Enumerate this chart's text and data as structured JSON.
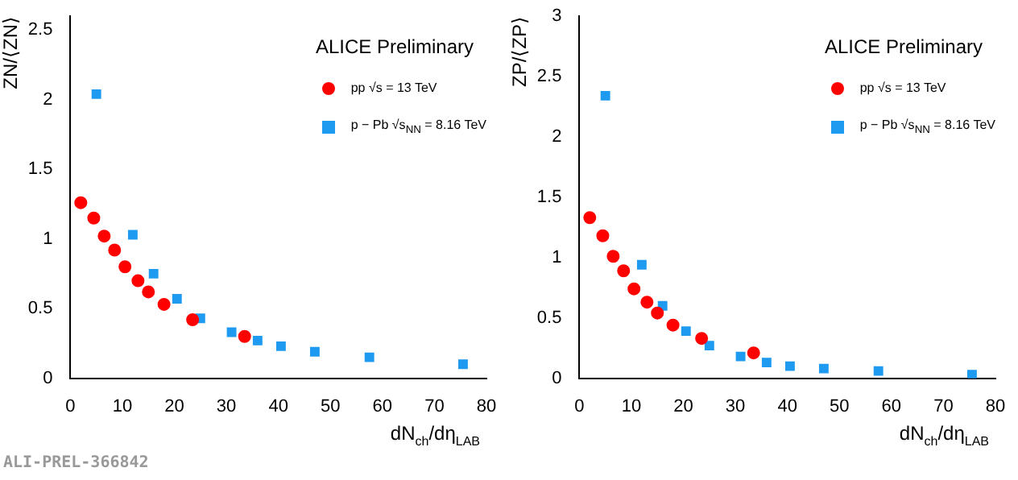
{
  "chart_data": [
    {
      "type": "scatter",
      "xlabel": "dN$_{ch}$/dη$_{LAB}$",
      "ylabel": "ZN/⟨ZN⟩",
      "xlim": [
        0,
        80
      ],
      "ylim": [
        0,
        2.6
      ],
      "xticks": [
        0,
        10,
        20,
        30,
        40,
        50,
        60,
        70,
        80
      ],
      "yticks": [
        0,
        0.5,
        1,
        1.5,
        2,
        2.5
      ],
      "legend": "top right",
      "grid": false,
      "annotations": [
        "ALICE Preliminary",
        "ALI-PREL-366842"
      ],
      "series": [
        {
          "name": "pp √s = 13 TeV",
          "color": "#ff0000",
          "marker": "circle",
          "x": [
            2,
            4.5,
            6.5,
            8.5,
            10.5,
            13,
            15,
            18,
            23.5,
            33.5
          ],
          "values": [
            1.26,
            1.15,
            1.02,
            0.92,
            0.8,
            0.7,
            0.62,
            0.53,
            0.42,
            0.3
          ]
        },
        {
          "name": "p − Pb √s$_{NN}$ = 8.16 TeV",
          "color": "#1e9bf0",
          "marker": "square",
          "x": [
            5,
            12,
            16,
            20.5,
            25,
            31,
            36,
            40.5,
            47,
            57.5,
            75.5
          ],
          "values": [
            2.04,
            1.03,
            0.75,
            0.57,
            0.43,
            0.33,
            0.27,
            0.23,
            0.19,
            0.15,
            0.1
          ]
        }
      ]
    },
    {
      "type": "scatter",
      "xlabel": "dN$_{ch}$/dη$_{LAB}$",
      "ylabel": "ZP/⟨ZP⟩",
      "xlim": [
        0,
        80
      ],
      "ylim": [
        0,
        3
      ],
      "xticks": [
        0,
        10,
        20,
        30,
        40,
        50,
        60,
        70,
        80
      ],
      "yticks": [
        0,
        0.5,
        1,
        1.5,
        2,
        2.5,
        3
      ],
      "legend": "top right",
      "grid": false,
      "annotations": [
        "ALICE Preliminary"
      ],
      "series": [
        {
          "name": "pp √s = 13 TeV",
          "color": "#ff0000",
          "marker": "circle",
          "x": [
            2,
            4.5,
            6.5,
            8.5,
            10.5,
            13,
            15,
            18,
            23.5,
            33.5
          ],
          "values": [
            1.33,
            1.18,
            1.01,
            0.89,
            0.74,
            0.63,
            0.54,
            0.44,
            0.33,
            0.21
          ]
        },
        {
          "name": "p − Pb √s$_{NN}$ = 8.16 TeV",
          "color": "#1e9bf0",
          "marker": "square",
          "x": [
            5,
            12,
            16,
            20.5,
            25,
            31,
            36,
            40.5,
            47,
            57.5,
            75.5
          ],
          "values": [
            2.34,
            0.94,
            0.6,
            0.39,
            0.27,
            0.18,
            0.13,
            0.1,
            0.08,
            0.06,
            0.03
          ]
        }
      ]
    }
  ]
}
